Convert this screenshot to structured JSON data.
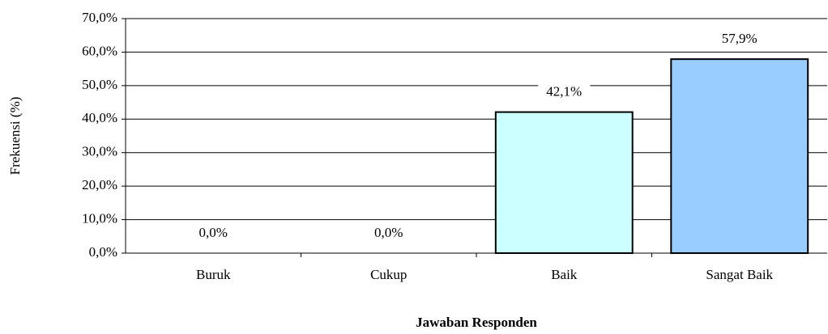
{
  "chart_data": {
    "type": "bar",
    "categories": [
      "Buruk",
      "Cukup",
      "Baik",
      "Sangat Baik"
    ],
    "values": [
      0,
      0,
      42.1,
      57.9
    ],
    "value_labels": [
      "0,0%",
      "0,0%",
      "42,1%",
      "57,9%"
    ],
    "colors": [
      "#ccffff",
      "#ccffff",
      "#ccffff",
      "#99ccff"
    ],
    "ylim": [
      0,
      70
    ],
    "yticks": [
      {
        "value": 0,
        "label": "0,0%"
      },
      {
        "value": 10,
        "label": "10,0%"
      },
      {
        "value": 20,
        "label": "20,0%"
      },
      {
        "value": 30,
        "label": "30,0%"
      },
      {
        "value": 40,
        "label": "40,0%"
      },
      {
        "value": 50,
        "label": "50,0%"
      },
      {
        "value": 60,
        "label": "60,0%"
      },
      {
        "value": 70,
        "label": "70,0%"
      }
    ],
    "ylabel": "Frekuensi (%)",
    "xlabel": "Jawaban Responden",
    "grid": true
  }
}
